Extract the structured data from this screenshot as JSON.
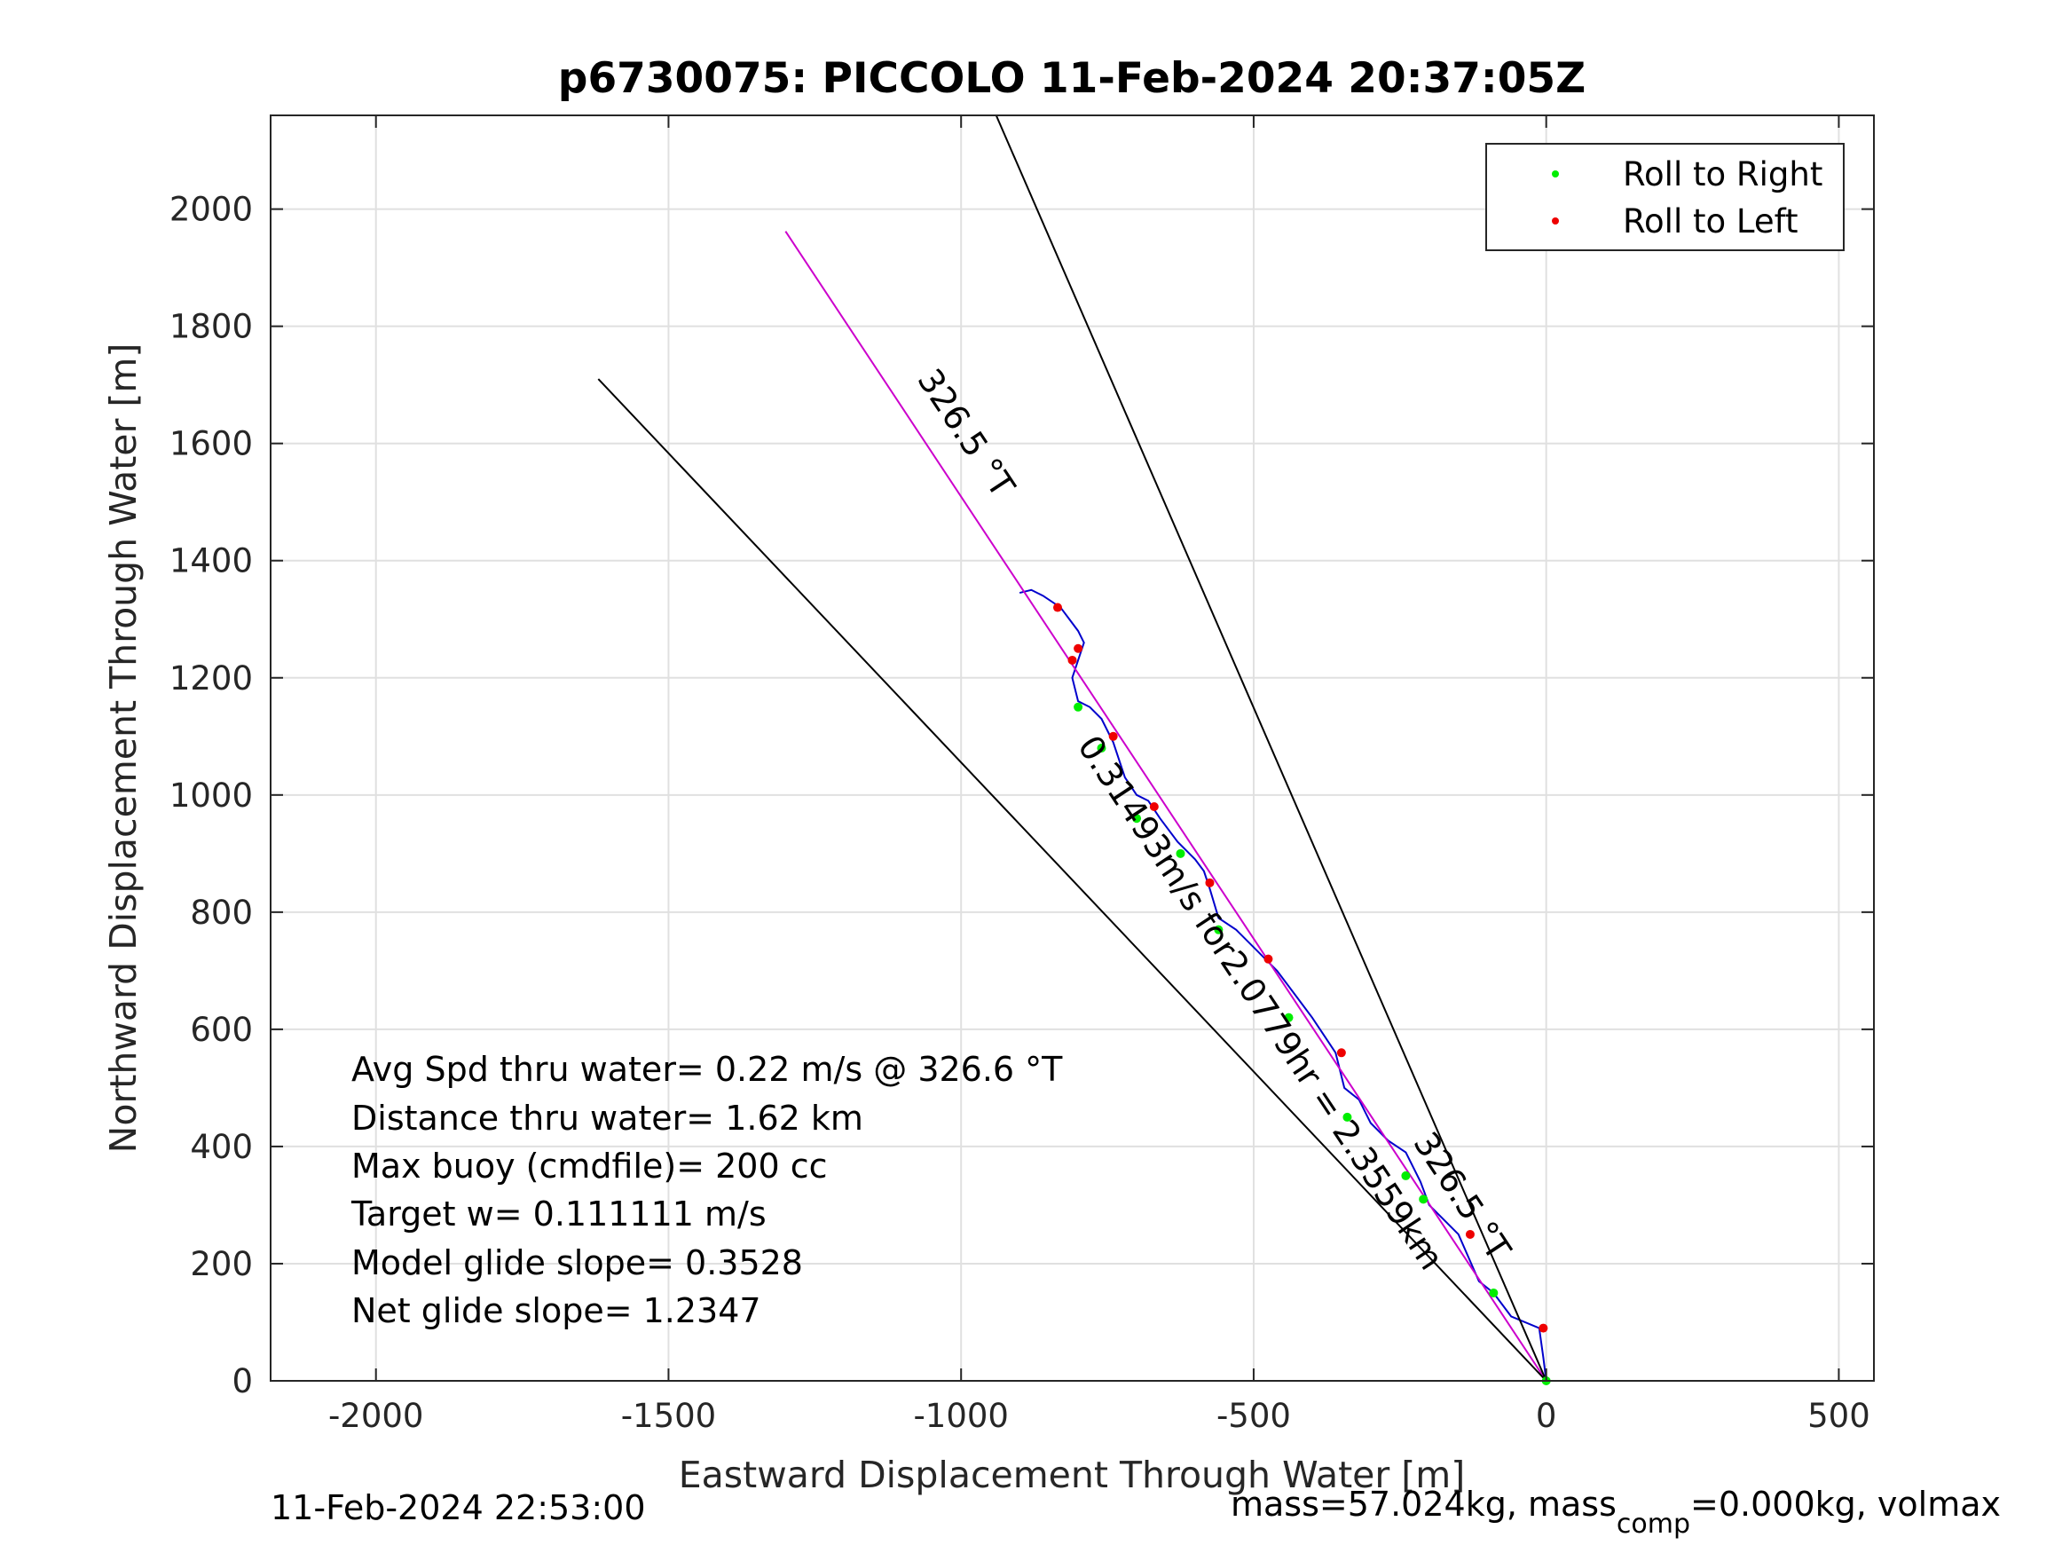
{
  "chart_data": {
    "type": "line",
    "title": "p6730075: PICCOLO 11-Feb-2024 20:37:05Z",
    "xlabel": "Eastward Displacement Through Water [m]",
    "ylabel": "Northward Displacement Through Water [m]",
    "xlim": [
      -2180,
      560
    ],
    "ylim": [
      0,
      2160
    ],
    "xticks": [
      -2000,
      -1500,
      -1000,
      -500,
      0,
      500
    ],
    "xtick_labels": [
      "-2000",
      "-1500",
      "-1000",
      "-500",
      "0",
      "500"
    ],
    "yticks": [
      0,
      200,
      400,
      600,
      800,
      1000,
      1200,
      1400,
      1600,
      1800,
      2000
    ],
    "ytick_labels": [
      "0",
      "200",
      "400",
      "600",
      "800",
      "1000",
      "1200",
      "1400",
      "1600",
      "1800",
      "2000"
    ],
    "grid": true,
    "legend": {
      "placement": "top-right",
      "entries": [
        {
          "label": "Roll to Right",
          "color": "#00ee00"
        },
        {
          "label": "Roll to Left",
          "color": "#ee0000"
        }
      ]
    },
    "annotations": {
      "heading_label_upper": "326.5 °T",
      "heading_label_lower": "326.5 °T",
      "vector_label": "0.31493m/s for2.0779hr = 2.3559km"
    },
    "series": [
      {
        "role": "track",
        "color": "#0000cc",
        "x": [
          0,
          -5,
          -12,
          -60,
          -90,
          -115,
          -150,
          -200,
          -215,
          -240,
          -270,
          -300,
          -320,
          -345,
          -360,
          -380,
          -400,
          -430,
          -460,
          -480,
          -500,
          -530,
          -560,
          -575,
          -585,
          -600,
          -630,
          -660,
          -680,
          -700,
          -720,
          -740,
          -760,
          -780,
          -800,
          -810,
          -800,
          -790,
          -800,
          -815,
          -830,
          -860,
          -880,
          -900
        ],
        "y": [
          0,
          40,
          90,
          110,
          150,
          170,
          250,
          300,
          340,
          390,
          410,
          440,
          480,
          500,
          560,
          590,
          620,
          660,
          700,
          720,
          740,
          770,
          790,
          840,
          870,
          890,
          920,
          960,
          990,
          1000,
          1030,
          1090,
          1130,
          1150,
          1160,
          1200,
          1230,
          1260,
          1280,
          1300,
          1320,
          1340,
          1350,
          1345
        ]
      },
      {
        "role": "heading-line",
        "color": "#cc00cc",
        "x": [
          0,
          -1300
        ],
        "y": [
          0,
          1962
        ]
      },
      {
        "role": "bounding-line-left",
        "color": "#000000",
        "x": [
          0,
          -1620
        ],
        "y": [
          0,
          1710
        ]
      },
      {
        "role": "bounding-line-right",
        "color": "#000000",
        "x": [
          0,
          -940
        ],
        "y": [
          0,
          2160
        ]
      },
      {
        "role": "roll-right",
        "color": "#00ee00",
        "x": [
          0,
          -90,
          -210,
          -240,
          -340,
          -440,
          -560,
          -625,
          -700,
          -760,
          -800
        ],
        "y": [
          0,
          150,
          310,
          350,
          450,
          620,
          770,
          900,
          960,
          1080,
          1150
        ]
      },
      {
        "role": "roll-left",
        "color": "#ee0000",
        "x": [
          -5,
          -130,
          -350,
          -475,
          -575,
          -670,
          -740,
          -810,
          -800,
          -835
        ],
        "y": [
          90,
          250,
          560,
          720,
          850,
          980,
          1100,
          1230,
          1250,
          1320
        ]
      }
    ]
  },
  "stats": {
    "lines": [
      "Avg Spd thru water=  0.22 m/s @ 326.6 °T",
      "Distance thru water=  1.62 km",
      "Max buoy (cmdfile)= 200 cc",
      "Target w= 0.111111 m/s",
      "Model glide slope= 0.3528",
      "Net glide slope= 1.2347"
    ]
  },
  "footer": {
    "timestamp": "11-Feb-2024 22:53:00",
    "mass_text": "mass=57.024kg, mass",
    "mass_subscript": "comp",
    "mass_rest": "=0.000kg, volmax"
  }
}
